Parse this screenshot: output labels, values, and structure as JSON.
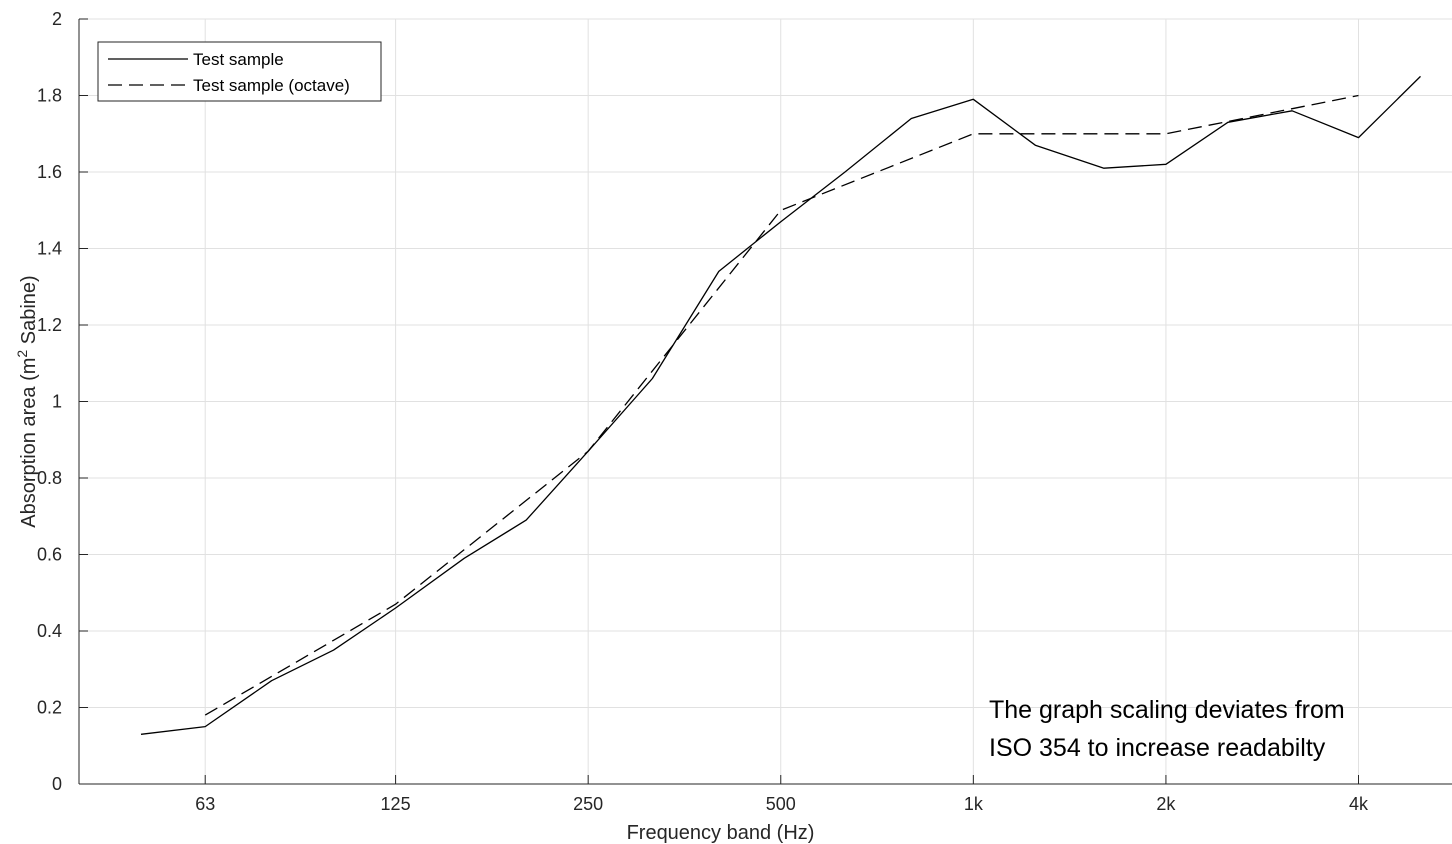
{
  "chart_data": {
    "type": "line",
    "title": "",
    "xlabel": "Frequency band (Hz)",
    "ylabel_main": "Absorption area (m",
    "ylabel_sup": "2",
    "ylabel_tail": " Sabine)",
    "x_scale": "log",
    "xlim": [
      40,
      5600
    ],
    "ylim": [
      0,
      2
    ],
    "x_ticks": [
      {
        "value": 63,
        "label": "63"
      },
      {
        "value": 125,
        "label": "125"
      },
      {
        "value": 250,
        "label": "250"
      },
      {
        "value": 500,
        "label": "500"
      },
      {
        "value": 1000,
        "label": "1k"
      },
      {
        "value": 2000,
        "label": "2k"
      },
      {
        "value": 4000,
        "label": "4k"
      }
    ],
    "y_ticks": [
      {
        "value": 0,
        "label": "0"
      },
      {
        "value": 0.2,
        "label": "0.2"
      },
      {
        "value": 0.4,
        "label": "0.4"
      },
      {
        "value": 0.6,
        "label": "0.6"
      },
      {
        "value": 0.8,
        "label": "0.8"
      },
      {
        "value": 1.0,
        "label": "1"
      },
      {
        "value": 1.2,
        "label": "1.2"
      },
      {
        "value": 1.4,
        "label": "1.4"
      },
      {
        "value": 1.6,
        "label": "1.6"
      },
      {
        "value": 1.8,
        "label": "1.8"
      },
      {
        "value": 2.0,
        "label": "2"
      }
    ],
    "grid": true,
    "legend_position": "top-left",
    "series": [
      {
        "name": "Test sample",
        "style": "solid",
        "color": "#000000",
        "x": [
          50,
          63,
          80,
          100,
          125,
          160,
          200,
          250,
          315,
          400,
          500,
          630,
          800,
          1000,
          1250,
          1600,
          2000,
          2500,
          3150,
          4000,
          5000
        ],
        "y": [
          0.13,
          0.15,
          0.27,
          0.35,
          0.46,
          0.59,
          0.69,
          0.87,
          1.06,
          1.34,
          1.47,
          1.6,
          1.74,
          1.79,
          1.67,
          1.61,
          1.62,
          1.73,
          1.76,
          1.69,
          1.85
        ]
      },
      {
        "name": "Test sample (octave)",
        "style": "dashed",
        "color": "#000000",
        "x": [
          63,
          125,
          250,
          500,
          1000,
          2000,
          4000
        ],
        "y": [
          0.18,
          0.47,
          0.87,
          1.5,
          1.7,
          1.7,
          1.8
        ]
      }
    ],
    "annotations": [
      "The graph scaling deviates from",
      "ISO 354 to increase readabilty"
    ]
  }
}
